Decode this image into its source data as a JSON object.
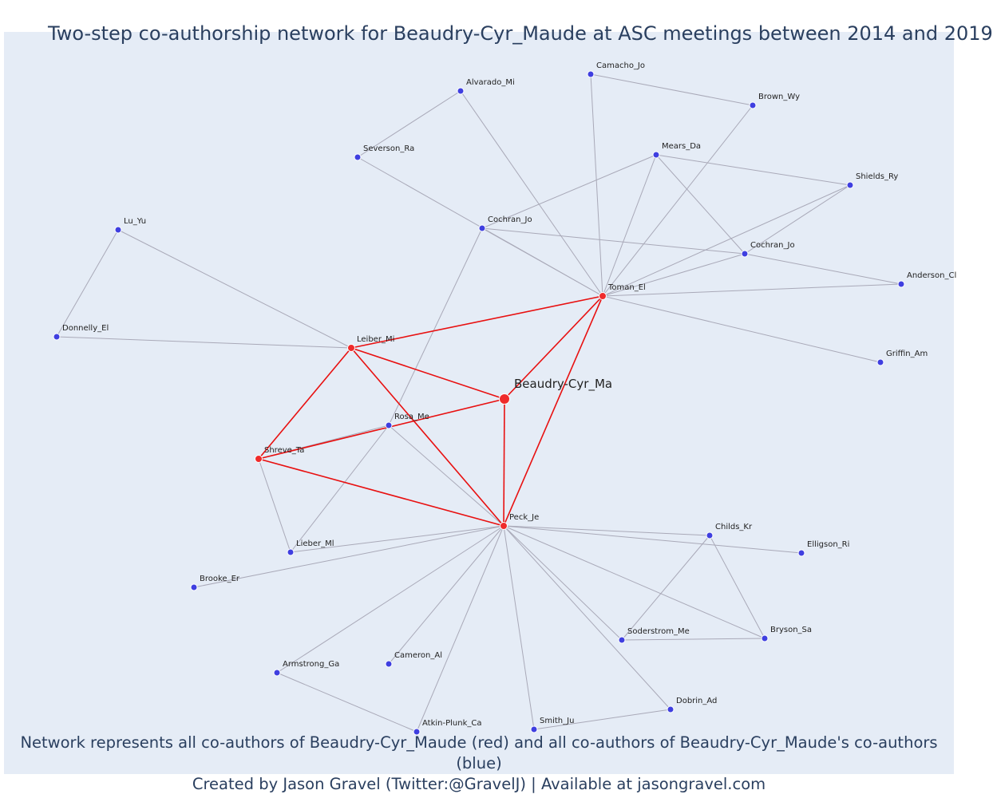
{
  "title": "Two-step co-authorship network for Beaudry-Cyr_Maude at ASC meetings between 2014 and 2019",
  "caption": {
    "line1": "Network represents all co-authors of Beaudry-Cyr_Maude (red) and all co-authors of Beaudry-Cyr_Maude's co-authors (blue)",
    "line2": "Created by Jason Gravel (Twitter:@GravelJ) | Available at jasongravel.com"
  },
  "colors": {
    "focal": "#ef2b2b",
    "first_step": "#ef2b2b",
    "second_step": "#3f3fe0",
    "red_edge": "#e81010",
    "gray_edge": "#a9a9b8"
  },
  "nodes": [
    {
      "id": "beaudry",
      "label": "Beaudry-Cyr_Ma",
      "group": "focal"
    },
    {
      "id": "toman",
      "label": "Toman_El",
      "group": "first"
    },
    {
      "id": "leiber",
      "label": "Leiber_Mi",
      "group": "first"
    },
    {
      "id": "shreve",
      "label": "Shreve_Ta",
      "group": "first"
    },
    {
      "id": "peck",
      "label": "Peck_Je",
      "group": "first"
    },
    {
      "id": "rosa",
      "label": "Rosa_Me",
      "group": "second"
    },
    {
      "id": "camacho",
      "label": "Camacho_Jo",
      "group": "second"
    },
    {
      "id": "alvarado",
      "label": "Alvarado_Mi",
      "group": "second"
    },
    {
      "id": "brown",
      "label": "Brown_Wy",
      "group": "second"
    },
    {
      "id": "severson",
      "label": "Severson_Ra",
      "group": "second"
    },
    {
      "id": "mears",
      "label": "Mears_Da",
      "group": "second"
    },
    {
      "id": "shields",
      "label": "Shields_Ry",
      "group": "second"
    },
    {
      "id": "luyu",
      "label": "Lu_Yu",
      "group": "second"
    },
    {
      "id": "cochran1",
      "label": "Cochran_Jo",
      "group": "second"
    },
    {
      "id": "cochran2",
      "label": "Cochran_Jo",
      "group": "second"
    },
    {
      "id": "anderson",
      "label": "Anderson_Cl",
      "group": "second"
    },
    {
      "id": "donnelly",
      "label": "Donnelly_El",
      "group": "second"
    },
    {
      "id": "griffin",
      "label": "Griffin_Am",
      "group": "second"
    },
    {
      "id": "lieber",
      "label": "Lieber_Ml",
      "group": "second"
    },
    {
      "id": "childs",
      "label": "Childs_Kr",
      "group": "second"
    },
    {
      "id": "elligson",
      "label": "Elligson_Ri",
      "group": "second"
    },
    {
      "id": "brooke",
      "label": "Brooke_Er",
      "group": "second"
    },
    {
      "id": "soderstrom",
      "label": "Soderstrom_Me",
      "group": "second"
    },
    {
      "id": "bryson",
      "label": "Bryson_Sa",
      "group": "second"
    },
    {
      "id": "armstrong",
      "label": "Armstrong_Ga",
      "group": "second"
    },
    {
      "id": "cameron",
      "label": "Cameron_Al",
      "group": "second"
    },
    {
      "id": "dobrin",
      "label": "Dobrin_Ad",
      "group": "second"
    },
    {
      "id": "smith",
      "label": "Smith_Ju",
      "group": "second"
    },
    {
      "id": "atkin",
      "label": "Atkin-Plunk_Ca",
      "group": "second"
    }
  ],
  "edges": [
    [
      "beaudry",
      "toman",
      "red"
    ],
    [
      "beaudry",
      "leiber",
      "red"
    ],
    [
      "beaudry",
      "shreve",
      "red"
    ],
    [
      "beaudry",
      "peck",
      "red"
    ],
    [
      "toman",
      "leiber",
      "red"
    ],
    [
      "toman",
      "peck",
      "red"
    ],
    [
      "leiber",
      "shreve",
      "red"
    ],
    [
      "leiber",
      "peck",
      "red"
    ],
    [
      "shreve",
      "peck",
      "red"
    ],
    [
      "alvarado",
      "severson",
      "gray"
    ],
    [
      "alvarado",
      "toman",
      "gray"
    ],
    [
      "camacho",
      "brown",
      "gray"
    ],
    [
      "camacho",
      "toman",
      "gray"
    ],
    [
      "brown",
      "toman",
      "gray"
    ],
    [
      "severson",
      "toman",
      "gray"
    ],
    [
      "mears",
      "cochran1",
      "gray"
    ],
    [
      "mears",
      "toman",
      "gray"
    ],
    [
      "mears",
      "shields",
      "gray"
    ],
    [
      "mears",
      "cochran2",
      "gray"
    ],
    [
      "shields",
      "toman",
      "gray"
    ],
    [
      "shields",
      "cochran2",
      "gray"
    ],
    [
      "cochran1",
      "toman",
      "gray"
    ],
    [
      "cochran1",
      "cochran2",
      "gray"
    ],
    [
      "cochran1",
      "rosa",
      "gray"
    ],
    [
      "cochran2",
      "toman",
      "gray"
    ],
    [
      "cochran2",
      "anderson",
      "gray"
    ],
    [
      "toman",
      "anderson",
      "gray"
    ],
    [
      "toman",
      "griffin",
      "gray"
    ],
    [
      "luyu",
      "donnelly",
      "gray"
    ],
    [
      "luyu",
      "leiber",
      "gray"
    ],
    [
      "donnelly",
      "leiber",
      "gray"
    ],
    [
      "rosa",
      "shreve",
      "gray"
    ],
    [
      "rosa",
      "peck",
      "gray"
    ],
    [
      "rosa",
      "lieber",
      "gray"
    ],
    [
      "shreve",
      "lieber",
      "gray"
    ],
    [
      "lieber",
      "peck",
      "gray"
    ],
    [
      "brooke",
      "peck",
      "gray"
    ],
    [
      "peck",
      "childs",
      "gray"
    ],
    [
      "peck",
      "elligson",
      "gray"
    ],
    [
      "peck",
      "soderstrom",
      "gray"
    ],
    [
      "peck",
      "bryson",
      "gray"
    ],
    [
      "peck",
      "armstrong",
      "gray"
    ],
    [
      "peck",
      "cameron",
      "gray"
    ],
    [
      "peck",
      "dobrin",
      "gray"
    ],
    [
      "peck",
      "smith",
      "gray"
    ],
    [
      "peck",
      "atkin",
      "gray"
    ],
    [
      "childs",
      "soderstrom",
      "gray"
    ],
    [
      "childs",
      "bryson",
      "gray"
    ],
    [
      "soderstrom",
      "bryson",
      "gray"
    ],
    [
      "armstrong",
      "atkin",
      "gray"
    ],
    [
      "smith",
      "dobrin",
      "gray"
    ]
  ]
}
